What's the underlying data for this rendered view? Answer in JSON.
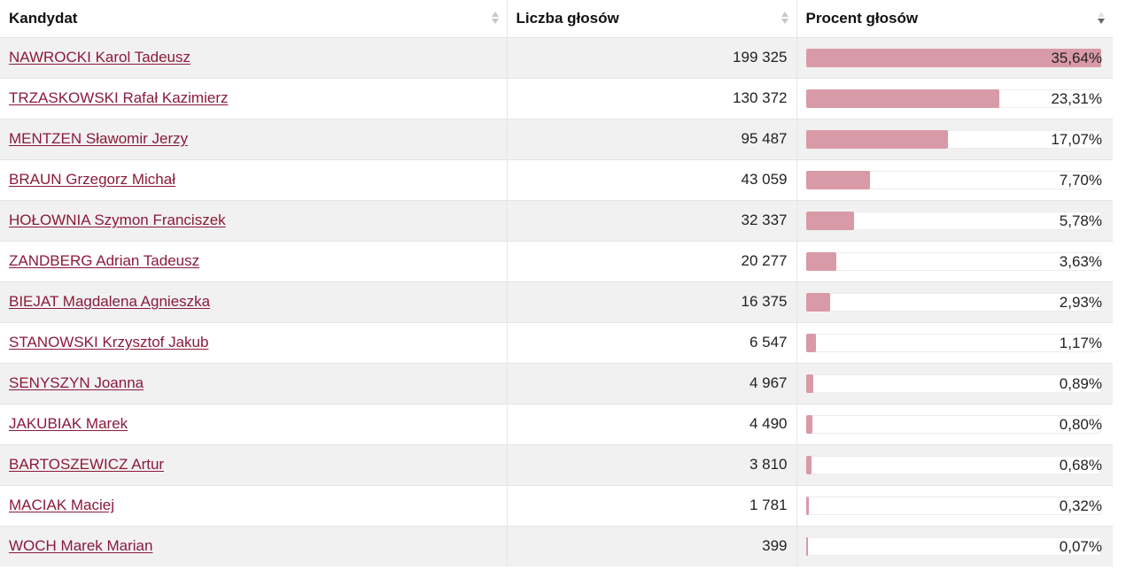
{
  "table": {
    "headers": [
      "Kandydat",
      "Liczba głosów",
      "Procent głosów"
    ],
    "bar_color": "#d99aa8",
    "link_color": "#8b1a3b",
    "rows": [
      {
        "name": "NAWROCKI Karol Tadeusz",
        "votes": "199 325",
        "percent": "35,64%",
        "fraction": 1.0
      },
      {
        "name": "TRZASKOWSKI Rafał Kazimierz",
        "votes": "130 372",
        "percent": "23,31%",
        "fraction": 0.654
      },
      {
        "name": "MENTZEN Sławomir Jerzy",
        "votes": "95 487",
        "percent": "17,07%",
        "fraction": 0.479
      },
      {
        "name": "BRAUN Grzegorz Michał",
        "votes": "43 059",
        "percent": "7,70%",
        "fraction": 0.216
      },
      {
        "name": "HOŁOWNIA Szymon Franciszek",
        "votes": "32 337",
        "percent": "5,78%",
        "fraction": 0.162
      },
      {
        "name": "ZANDBERG Adrian Tadeusz",
        "votes": "20 277",
        "percent": "3,63%",
        "fraction": 0.102
      },
      {
        "name": "BIEJAT Magdalena Agnieszka",
        "votes": "16 375",
        "percent": "2,93%",
        "fraction": 0.082
      },
      {
        "name": "STANOWSKI Krzysztof Jakub",
        "votes": "6 547",
        "percent": "1,17%",
        "fraction": 0.033
      },
      {
        "name": "SENYSZYN Joanna",
        "votes": "4 967",
        "percent": "0,89%",
        "fraction": 0.025
      },
      {
        "name": "JAKUBIAK Marek",
        "votes": "4 490",
        "percent": "0,80%",
        "fraction": 0.022
      },
      {
        "name": "BARTOSZEWICZ Artur",
        "votes": "3 810",
        "percent": "0,68%",
        "fraction": 0.019
      },
      {
        "name": "MACIAK Maciej",
        "votes": "1 781",
        "percent": "0,32%",
        "fraction": 0.009
      },
      {
        "name": "WOCH Marek Marian",
        "votes": "399",
        "percent": "0,07%",
        "fraction": 0.002
      }
    ]
  }
}
